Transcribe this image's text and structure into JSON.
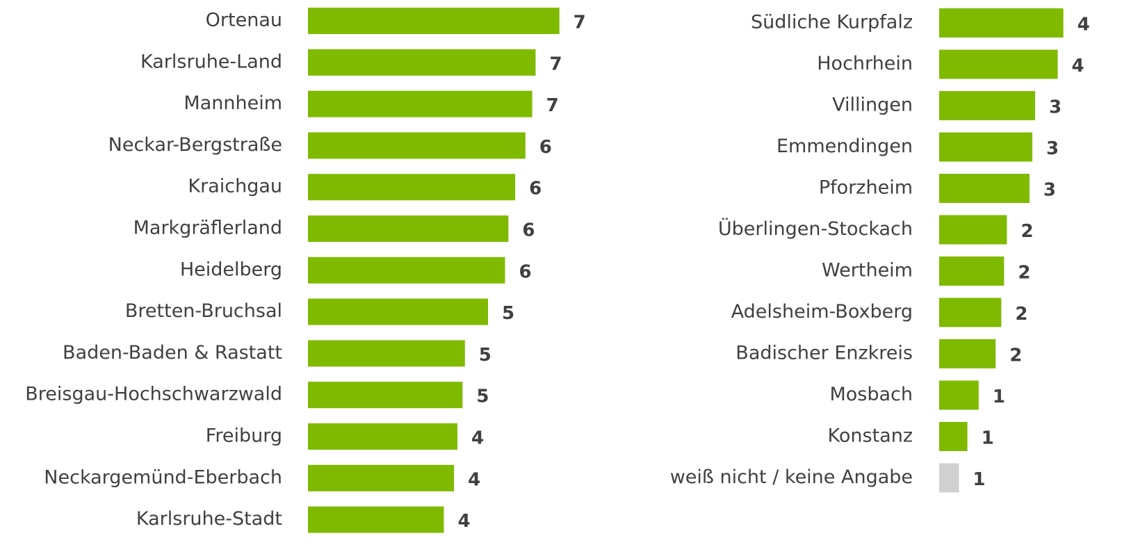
{
  "chart_data": [
    {
      "type": "bar",
      "orientation": "horizontal",
      "categories": [
        "Ortenau",
        "Karlsruhe-Land",
        "Mannheim",
        "Neckar-Bergstraße",
        "Kraichgau",
        "Markgräflerland",
        "Heidelberg",
        "Bretten-Bruchsal",
        "Baden-Baden & Rastatt",
        "Breisgau-Hochschwarzwald",
        "Freiburg",
        "Neckargemünd-Eberbach",
        "Karlsruhe-Stadt"
      ],
      "values": [
        7.4,
        6.7,
        6.6,
        6.4,
        6.1,
        5.9,
        5.8,
        5.3,
        4.62,
        4.55,
        4.4,
        4.3,
        4.0
      ],
      "value_labels": [
        "7",
        "7",
        "7",
        "6",
        "6",
        "6",
        "6",
        "5",
        "5",
        "5",
        "4",
        "4",
        "4"
      ],
      "colors": [
        "#7fba00",
        "#7fba00",
        "#7fba00",
        "#7fba00",
        "#7fba00",
        "#7fba00",
        "#7fba00",
        "#7fba00",
        "#7fba00",
        "#7fba00",
        "#7fba00",
        "#7fba00",
        "#7fba00"
      ],
      "xlim": [
        0,
        8
      ]
    },
    {
      "type": "bar",
      "orientation": "horizontal",
      "categories": [
        "Südliche Kurpfalz",
        "Hochrhein",
        "Villingen",
        "Emmendingen",
        "Pforzheim",
        "Überlingen-Stockach",
        "Wertheim",
        "Adelsheim-Boxberg",
        "Badischer Enzkreis",
        "Mosbach",
        "Konstanz",
        "weiß nicht / keine Angabe"
      ],
      "values": [
        4.4,
        4.2,
        3.4,
        3.3,
        3.2,
        2.4,
        2.3,
        2.2,
        2.0,
        1.4,
        1.0,
        0.7
      ],
      "value_labels": [
        "4",
        "4",
        "3",
        "3",
        "3",
        "2",
        "2",
        "2",
        "2",
        "1",
        "1",
        "1"
      ],
      "colors": [
        "#7fba00",
        "#7fba00",
        "#7fba00",
        "#7fba00",
        "#7fba00",
        "#7fba00",
        "#7fba00",
        "#7fba00",
        "#7fba00",
        "#7fba00",
        "#7fba00",
        "#d0d0d0"
      ],
      "xlim": [
        0,
        5
      ]
    }
  ]
}
